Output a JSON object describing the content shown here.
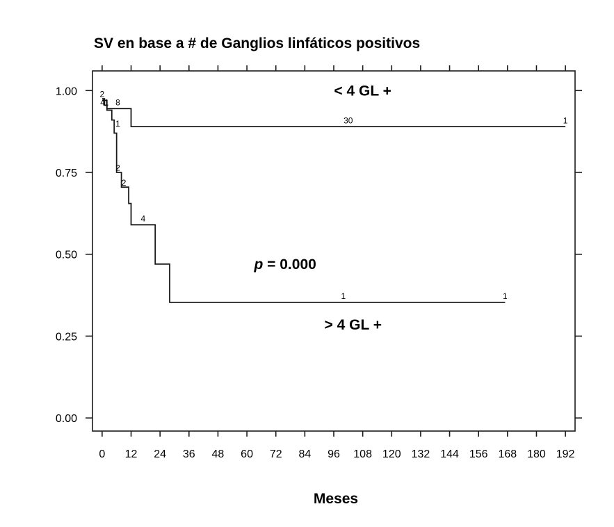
{
  "chart_data": {
    "type": "line",
    "subtype": "kaplan-meier",
    "title": "SV en base a # de Ganglios linfáticos positivos",
    "xlabel": "Meses",
    "ylabel": "",
    "xlim": [
      -4,
      196
    ],
    "ylim": [
      -0.04,
      1.06
    ],
    "xticks": [
      0,
      12,
      24,
      36,
      48,
      60,
      72,
      84,
      96,
      108,
      120,
      132,
      144,
      156,
      168,
      180,
      192
    ],
    "yticks": [
      0,
      0.25,
      0.5,
      0.75,
      1.0
    ],
    "ytick_labels": [
      "0.00",
      "0.25",
      "0.50",
      "0.75",
      "1.00"
    ],
    "grid": false,
    "legend": "none",
    "series": [
      {
        "label": "< 4 GL +",
        "label_at": [
          108,
          0.985
        ],
        "steps": [
          [
            0,
            0.975
          ],
          [
            1,
            0.975
          ],
          [
            1,
            0.955
          ],
          [
            2,
            0.955
          ],
          [
            2,
            0.945
          ],
          [
            12,
            0.945
          ],
          [
            12,
            0.89
          ],
          [
            192,
            0.89
          ]
        ],
        "risk_marks": [
          {
            "x": 0,
            "y": 0.98,
            "text": "2"
          },
          {
            "x": 0.2,
            "y": 0.955,
            "text": "4"
          },
          {
            "x": 1.8,
            "y": 0.955,
            "text": "1"
          },
          {
            "x": 6.5,
            "y": 0.955,
            "text": "8"
          },
          {
            "x": 102,
            "y": 0.9,
            "text": "30"
          },
          {
            "x": 192,
            "y": 0.9,
            "text": "1"
          }
        ]
      },
      {
        "label": "> 4 GL +",
        "label_at": [
          104,
          0.27
        ],
        "steps": [
          [
            0,
            0.97
          ],
          [
            2,
            0.97
          ],
          [
            2,
            0.94
          ],
          [
            4,
            0.94
          ],
          [
            4,
            0.91
          ],
          [
            5,
            0.91
          ],
          [
            5,
            0.87
          ],
          [
            6,
            0.87
          ],
          [
            6,
            0.75
          ],
          [
            8,
            0.75
          ],
          [
            8,
            0.705
          ],
          [
            11,
            0.705
          ],
          [
            11,
            0.655
          ],
          [
            12,
            0.655
          ],
          [
            12,
            0.59
          ],
          [
            22,
            0.59
          ],
          [
            22,
            0.47
          ],
          [
            28,
            0.47
          ],
          [
            28,
            0.353
          ],
          [
            167,
            0.353
          ]
        ],
        "risk_marks": [
          {
            "x": 6.5,
            "y": 0.89,
            "text": "1"
          },
          {
            "x": 6.5,
            "y": 0.755,
            "text": "2"
          },
          {
            "x": 9,
            "y": 0.71,
            "text": "2"
          },
          {
            "x": 17,
            "y": 0.6,
            "text": "4"
          },
          {
            "x": 100,
            "y": 0.363,
            "text": "1"
          },
          {
            "x": 167,
            "y": 0.363,
            "text": "1"
          }
        ]
      }
    ],
    "annotation": {
      "prefix": "p",
      "text": " = 0.000",
      "at": [
        63,
        0.455
      ]
    }
  }
}
